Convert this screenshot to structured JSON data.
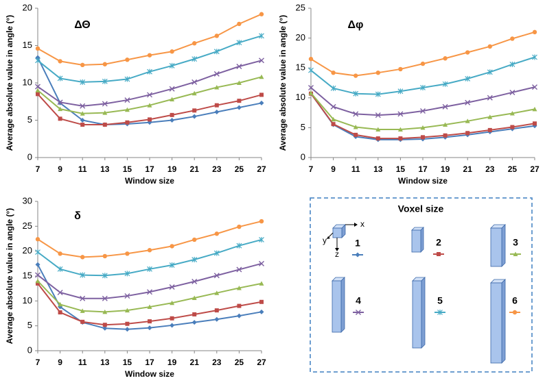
{
  "chart_data": [
    {
      "type": "line",
      "title": "ΔΘ",
      "xlabel": "Window size",
      "ylabel": "Average absolute value in angle (°)",
      "x": [
        7,
        9,
        11,
        13,
        15,
        17,
        19,
        21,
        23,
        25,
        27
      ],
      "xlim": [
        7,
        27
      ],
      "xticks": [
        7,
        9,
        11,
        13,
        15,
        17,
        19,
        21,
        23,
        25,
        27
      ],
      "ylim": [
        0,
        20
      ],
      "yticks": [
        0,
        5,
        10,
        15,
        20
      ],
      "grid": false,
      "series": [
        {
          "name": "1",
          "color": "#4a7ebb",
          "marker": "diamond",
          "values": [
            13.4,
            7.3,
            5.0,
            4.4,
            4.5,
            4.7,
            5.0,
            5.5,
            6.1,
            6.7,
            7.3
          ]
        },
        {
          "name": "2",
          "color": "#be4b48",
          "marker": "square",
          "values": [
            8.5,
            5.2,
            4.4,
            4.4,
            4.7,
            5.1,
            5.7,
            6.3,
            7.0,
            7.6,
            8.4
          ]
        },
        {
          "name": "3",
          "color": "#98b954",
          "marker": "triangle",
          "values": [
            9.0,
            6.5,
            5.9,
            6.0,
            6.4,
            7.0,
            7.8,
            8.6,
            9.4,
            10.0,
            10.8
          ]
        },
        {
          "name": "4",
          "color": "#7d60a0",
          "marker": "cross",
          "values": [
            9.5,
            7.4,
            6.9,
            7.2,
            7.7,
            8.4,
            9.2,
            10.1,
            11.2,
            12.2,
            13.0
          ]
        },
        {
          "name": "5",
          "color": "#46aac5",
          "marker": "star",
          "values": [
            13.0,
            10.6,
            10.1,
            10.2,
            10.5,
            11.5,
            12.3,
            13.2,
            14.2,
            15.4,
            16.3
          ]
        },
        {
          "name": "6",
          "color": "#f79646",
          "marker": "circle",
          "values": [
            14.6,
            12.9,
            12.4,
            12.5,
            13.1,
            13.7,
            14.2,
            15.3,
            16.3,
            17.9,
            19.2
          ]
        }
      ]
    },
    {
      "type": "line",
      "title": "Δφ",
      "xlabel": "Window size",
      "ylabel": "Average absolute value in angle (°)",
      "x": [
        7,
        9,
        11,
        13,
        15,
        17,
        19,
        21,
        23,
        25,
        27
      ],
      "xlim": [
        7,
        27
      ],
      "xticks": [
        7,
        9,
        11,
        13,
        15,
        17,
        19,
        21,
        23,
        25,
        27
      ],
      "ylim": [
        0,
        25
      ],
      "yticks": [
        0,
        5,
        10,
        15,
        20,
        25
      ],
      "grid": false,
      "series": [
        {
          "name": "1",
          "color": "#4a7ebb",
          "marker": "diamond",
          "values": [
            10.7,
            5.5,
            3.5,
            3.0,
            3.0,
            3.1,
            3.4,
            3.8,
            4.3,
            4.8,
            5.3
          ]
        },
        {
          "name": "2",
          "color": "#be4b48",
          "marker": "square",
          "values": [
            10.7,
            5.6,
            3.8,
            3.2,
            3.2,
            3.4,
            3.7,
            4.1,
            4.6,
            5.1,
            5.7
          ]
        },
        {
          "name": "3",
          "color": "#98b954",
          "marker": "triangle",
          "values": [
            10.8,
            6.4,
            5.1,
            4.7,
            4.7,
            5.0,
            5.5,
            6.1,
            6.8,
            7.4,
            8.1
          ]
        },
        {
          "name": "4",
          "color": "#7d60a0",
          "marker": "cross",
          "values": [
            11.7,
            8.5,
            7.3,
            7.1,
            7.3,
            7.8,
            8.5,
            9.2,
            10.0,
            10.9,
            11.8
          ]
        },
        {
          "name": "5",
          "color": "#46aac5",
          "marker": "star",
          "values": [
            14.6,
            11.6,
            10.7,
            10.6,
            11.1,
            11.7,
            12.3,
            13.2,
            14.3,
            15.6,
            16.8
          ]
        },
        {
          "name": "6",
          "color": "#f79646",
          "marker": "circle",
          "values": [
            16.5,
            14.2,
            13.7,
            14.2,
            14.8,
            15.7,
            16.6,
            17.6,
            18.6,
            19.9,
            21.0
          ]
        }
      ]
    },
    {
      "type": "line",
      "title": "δ",
      "xlabel": "Window size",
      "ylabel": "Average absolute value in angle (°)",
      "x": [
        7,
        9,
        11,
        13,
        15,
        17,
        19,
        21,
        23,
        25,
        27
      ],
      "xlim": [
        7,
        27
      ],
      "xticks": [
        7,
        9,
        11,
        13,
        15,
        17,
        19,
        21,
        23,
        25,
        27
      ],
      "ylim": [
        0,
        30
      ],
      "yticks": [
        0,
        5,
        10,
        15,
        20,
        25,
        30
      ],
      "grid": false,
      "series": [
        {
          "name": "1",
          "color": "#4a7ebb",
          "marker": "diamond",
          "values": [
            17.3,
            8.8,
            5.7,
            4.5,
            4.3,
            4.6,
            5.1,
            5.7,
            6.3,
            7.0,
            7.8
          ]
        },
        {
          "name": "2",
          "color": "#be4b48",
          "marker": "square",
          "values": [
            13.5,
            7.7,
            5.8,
            5.2,
            5.4,
            5.9,
            6.5,
            7.3,
            8.1,
            9.0,
            9.8
          ]
        },
        {
          "name": "3",
          "color": "#98b954",
          "marker": "triangle",
          "values": [
            14.0,
            9.3,
            8.0,
            7.8,
            8.1,
            8.8,
            9.6,
            10.6,
            11.6,
            12.6,
            13.5
          ]
        },
        {
          "name": "4",
          "color": "#7d60a0",
          "marker": "cross",
          "values": [
            15.2,
            11.7,
            10.5,
            10.5,
            11.0,
            11.8,
            12.8,
            13.9,
            15.1,
            16.3,
            17.5
          ]
        },
        {
          "name": "5",
          "color": "#46aac5",
          "marker": "star",
          "values": [
            19.8,
            16.4,
            15.2,
            15.1,
            15.5,
            16.4,
            17.2,
            18.3,
            19.6,
            21.1,
            22.3
          ]
        },
        {
          "name": "6",
          "color": "#f79646",
          "marker": "circle",
          "values": [
            22.4,
            19.5,
            18.8,
            19.0,
            19.5,
            20.2,
            21.0,
            22.3,
            23.5,
            24.9,
            26.0
          ]
        }
      ]
    }
  ],
  "legend": {
    "title": "Voxel size",
    "axis_labels": [
      "x",
      "y",
      "z"
    ]
  }
}
